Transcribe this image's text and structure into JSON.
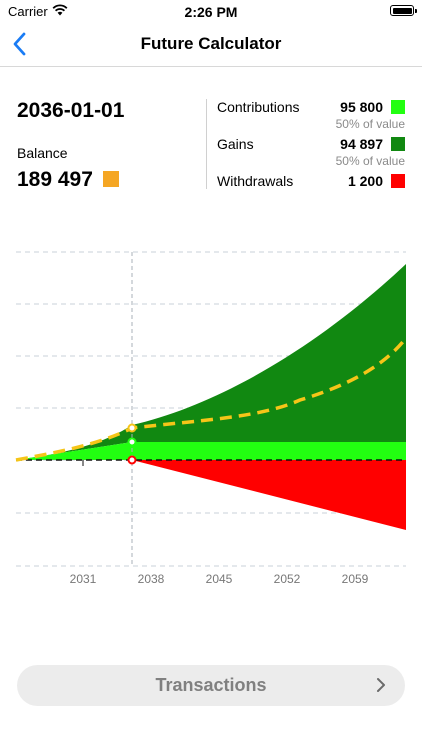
{
  "status_bar": {
    "carrier": "Carrier",
    "time": "2:26 PM"
  },
  "nav": {
    "title": "Future Calculator"
  },
  "summary": {
    "date": "2036-01-01",
    "balance_label": "Balance",
    "balance_value": "189 497",
    "balance_color": "#f5a623"
  },
  "legend": [
    {
      "label": "Contributions",
      "value": "95 800",
      "sub": "50% of value",
      "color": "#22ff11"
    },
    {
      "label": "Gains",
      "value": "94 897",
      "sub": "50% of value",
      "color": "#118811"
    },
    {
      "label": "Withdrawals",
      "value": "1 200",
      "sub": "",
      "color": "#ff0000"
    }
  ],
  "chart_data": {
    "type": "area",
    "x_ticks": [
      "2031",
      "2038",
      "2045",
      "2052",
      "2059"
    ],
    "series": [
      {
        "name": "Contributions",
        "color": "#22ff11"
      },
      {
        "name": "Gains",
        "color": "#118811"
      },
      {
        "name": "Withdrawals",
        "color": "#ff0000"
      },
      {
        "name": "Balance",
        "color": "#f5c518"
      }
    ],
    "grid": true
  },
  "button": {
    "label": "Transactions"
  }
}
